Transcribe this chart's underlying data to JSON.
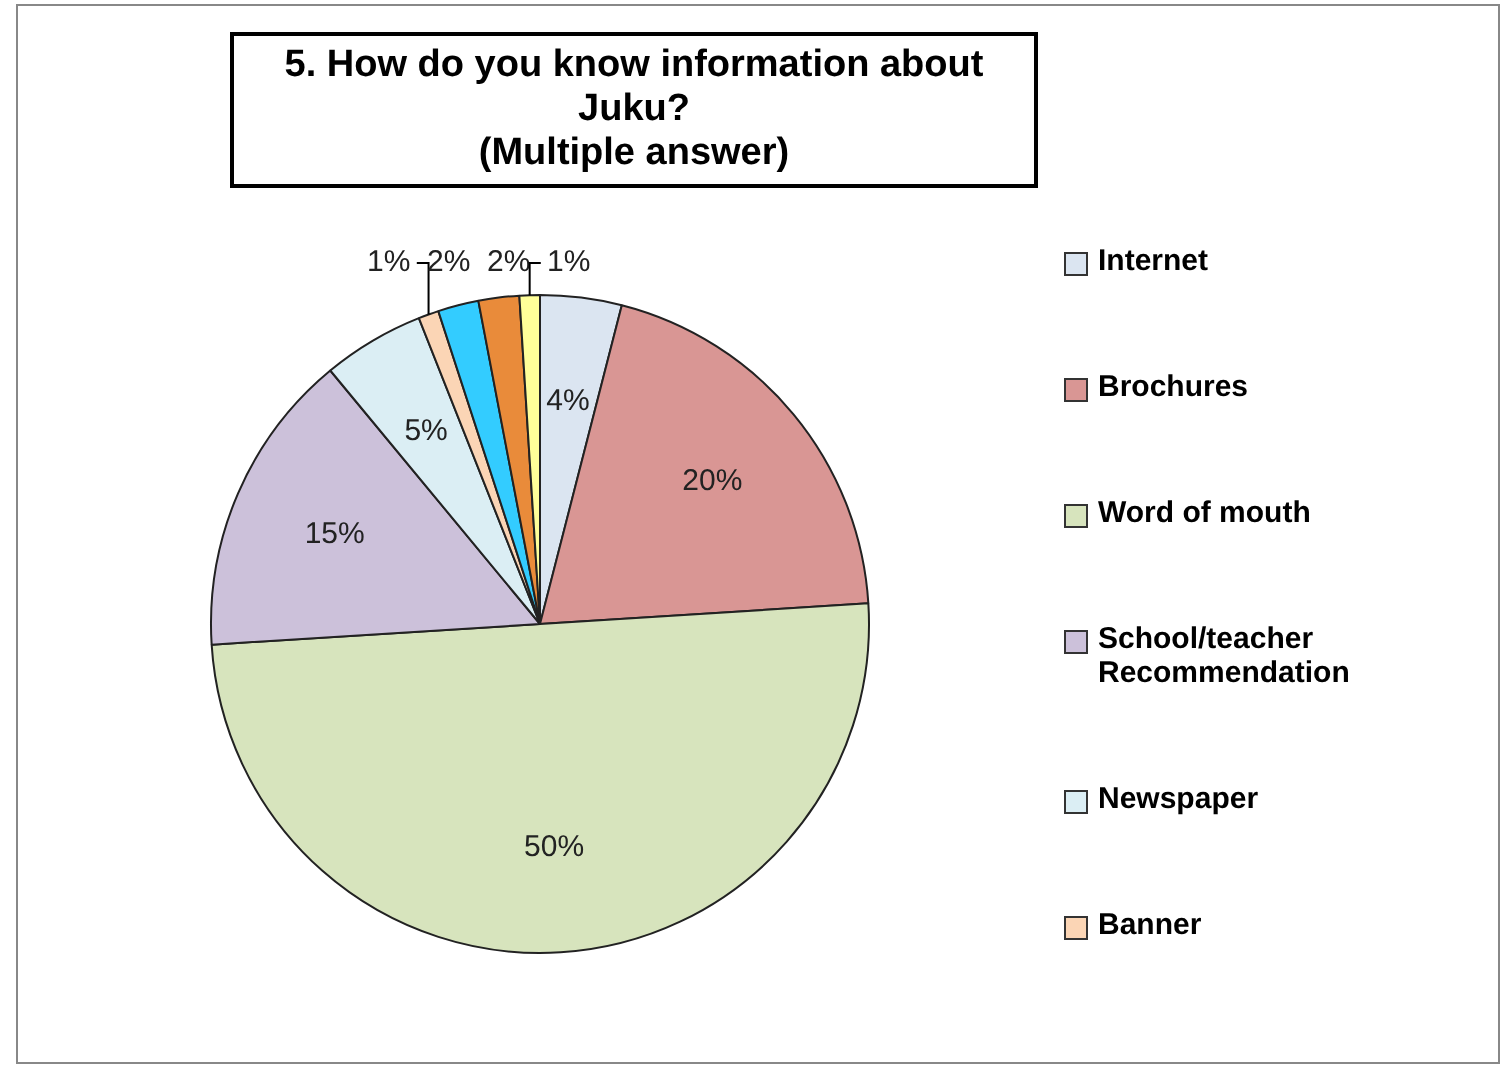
{
  "chart_data": {
    "type": "pie",
    "title": "5. How do you know information about Juku?\n(Multiple answer)",
    "categories": [
      "Internet",
      "Brochures",
      "Word of mouth",
      "School/teacher Recommendation",
      "Newspaper",
      "Banner",
      null,
      null,
      null
    ],
    "values": [
      4,
      20,
      50,
      15,
      5,
      1,
      2,
      2,
      1
    ],
    "colors": [
      "#dbe5f1",
      "#d99694",
      "#d7e4bd",
      "#ccc1da",
      "#dbeef4",
      "#fbd5b5",
      "#33ccff",
      "#e98b3a",
      "#ffff99"
    ],
    "value_labels": [
      "4%",
      "20%",
      "50%",
      "15%",
      "5%",
      "1%",
      "2%",
      "2%",
      "1%"
    ],
    "legend": "right"
  }
}
